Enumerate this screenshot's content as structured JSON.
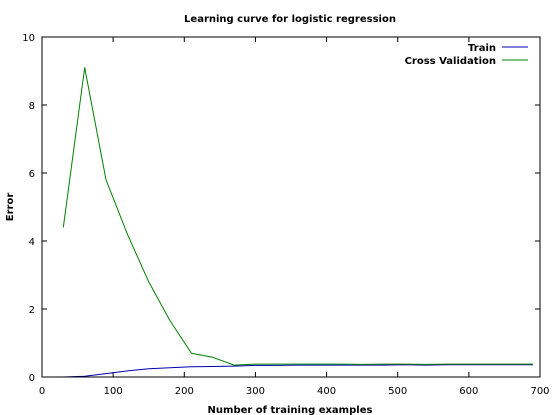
{
  "chart_data": {
    "type": "line",
    "title": "Learning curve for logistic regression",
    "xlabel": "Number of training examples",
    "ylabel": "Error",
    "xlim": [
      0,
      700
    ],
    "ylim": [
      0,
      10
    ],
    "x_ticks": [
      "0",
      "100",
      "200",
      "300",
      "400",
      "500",
      "600",
      "700"
    ],
    "y_ticks": [
      "0",
      "2",
      "4",
      "6",
      "8",
      "10"
    ],
    "grid": false,
    "legend_position": "top-right",
    "series": [
      {
        "name": "Train",
        "color": "#0000b0",
        "x": [
          30,
          60,
          90,
          120,
          150,
          180,
          210,
          240,
          270,
          300,
          330,
          360,
          390,
          420,
          450,
          480,
          510,
          540,
          570,
          600,
          630,
          660,
          690
        ],
        "y": [
          0.0,
          0.02,
          0.1,
          0.18,
          0.24,
          0.27,
          0.3,
          0.31,
          0.32,
          0.34,
          0.34,
          0.35,
          0.35,
          0.35,
          0.35,
          0.35,
          0.36,
          0.35,
          0.36,
          0.36,
          0.36,
          0.36,
          0.36
        ]
      },
      {
        "name": "Cross Validation",
        "color": "#008000",
        "x": [
          30,
          60,
          90,
          120,
          150,
          180,
          210,
          240,
          270,
          300,
          330,
          360,
          390,
          420,
          450,
          480,
          510,
          540,
          570,
          600,
          630,
          660,
          690
        ],
        "y": [
          4.4,
          9.1,
          5.8,
          4.2,
          2.8,
          1.65,
          0.7,
          0.58,
          0.35,
          0.38,
          0.38,
          0.38,
          0.38,
          0.38,
          0.37,
          0.38,
          0.38,
          0.37,
          0.38,
          0.38,
          0.38,
          0.38,
          0.38
        ]
      }
    ]
  }
}
